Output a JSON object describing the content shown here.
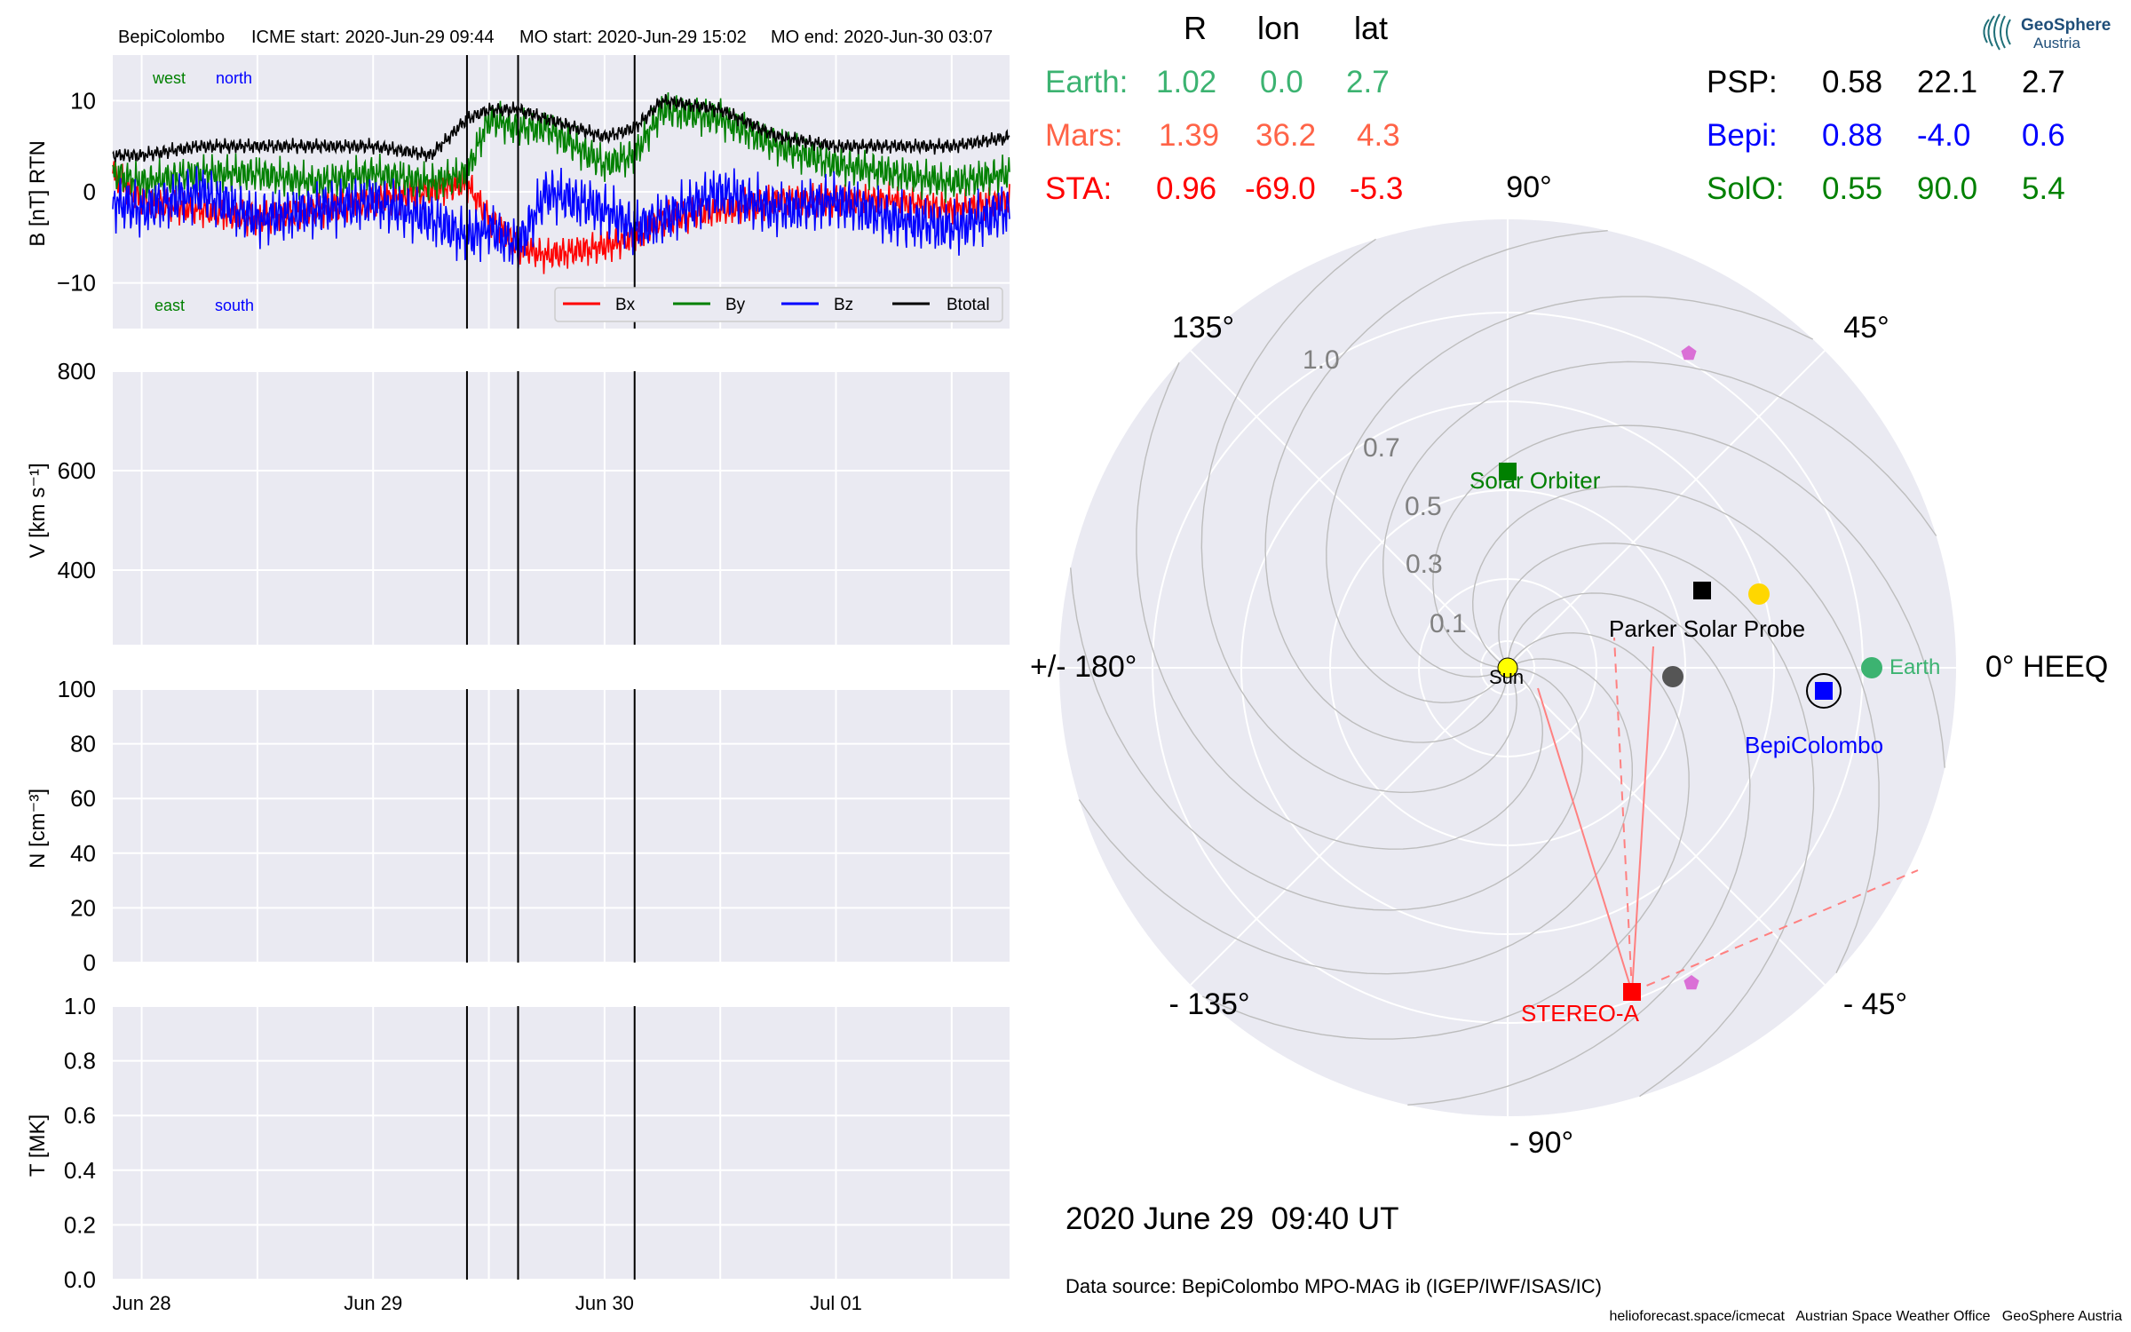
{
  "header": {
    "spacecraft": "BepiColombo",
    "icme_start": "ICME start: 2020-Jun-29 09:44",
    "mo_start": "MO start: 2020-Jun-29 15:02",
    "mo_end": "MO end: 2020-Jun-30 03:07"
  },
  "labels": {
    "west": "west",
    "north": "north",
    "east": "east",
    "south": "south"
  },
  "legend": [
    "Bx",
    "By",
    "Bz",
    "Btotal"
  ],
  "colors": {
    "bx": "#ff0000",
    "by": "#008000",
    "bz": "#0000ff",
    "btotal": "#000000",
    "panel_bg": "#eaeaf2",
    "earth": "#3cb371",
    "mars": "#ff6347",
    "sta": "#ff0000",
    "bepi": "#0000ff",
    "solo": "#008000",
    "psp": "#000000"
  },
  "date_ticks": [
    "Jun 28",
    "Jun 29",
    "Jun 30",
    "Jul 01"
  ],
  "chart_data": [
    {
      "type": "line",
      "ylabel": "B [nT] RTN",
      "ylim": [
        -15,
        15
      ],
      "yticks": [
        "10",
        "0",
        "−10"
      ],
      "xlim": [
        "2020-06-27T21:00",
        "2020-07-01T18:00"
      ],
      "event_lines": [
        "2020-06-29T09:44",
        "2020-06-29T15:02",
        "2020-06-30T03:07"
      ],
      "legend_position": "bottom-right",
      "x": [
        "2020-06-27T21:00",
        "2020-06-28T00:00",
        "2020-06-28T06:00",
        "2020-06-28T12:00",
        "2020-06-28T18:00",
        "2020-06-29T00:00",
        "2020-06-29T06:00",
        "2020-06-29T09:44",
        "2020-06-29T12:00",
        "2020-06-29T15:02",
        "2020-06-29T18:00",
        "2020-06-30T00:00",
        "2020-06-30T03:07",
        "2020-06-30T06:00",
        "2020-06-30T12:00",
        "2020-06-30T18:00",
        "2020-07-01T00:00",
        "2020-07-01T06:00",
        "2020-07-01T12:00",
        "2020-07-01T18:00"
      ],
      "series": [
        {
          "name": "Bx",
          "values": [
            2,
            -1,
            -2,
            -3,
            -2,
            -1,
            0,
            1,
            -3,
            -6,
            -7,
            -6,
            -5,
            -3,
            -2,
            -1,
            -1,
            -1,
            -2,
            -1
          ]
        },
        {
          "name": "By",
          "values": [
            2,
            1,
            2,
            2,
            1,
            2,
            1,
            2,
            8,
            7,
            7,
            3,
            4,
            9,
            8,
            5,
            3,
            2,
            1,
            2
          ]
        },
        {
          "name": "Bz",
          "values": [
            -1,
            -2,
            0,
            -3,
            -2,
            -1,
            -3,
            -5,
            -4,
            -6,
            0,
            -2,
            -4,
            -3,
            0,
            -2,
            -1,
            -3,
            -4,
            -2
          ]
        },
        {
          "name": "Btotal",
          "values": [
            4,
            4,
            5,
            5,
            5,
            5,
            4,
            8,
            9,
            9,
            8,
            6,
            7,
            10,
            9,
            6,
            5,
            5,
            5,
            6
          ]
        }
      ]
    },
    {
      "type": "line",
      "ylabel": "V [km s⁻¹]",
      "ylim": [
        250,
        800
      ],
      "yticks": [
        "800",
        "600",
        "400"
      ],
      "series": []
    },
    {
      "type": "line",
      "ylabel": "N [cm⁻³]",
      "ylim": [
        0,
        100
      ],
      "yticks": [
        "100",
        "80",
        "60",
        "40",
        "20",
        "0"
      ],
      "series": []
    },
    {
      "type": "line",
      "ylabel": "T [MK]",
      "ylim": [
        0,
        1
      ],
      "yticks": [
        "1.0",
        "0.8",
        "0.6",
        "0.4",
        "0.2",
        "0.0"
      ],
      "series": []
    },
    {
      "type": "scatter",
      "projection": "polar",
      "angle_labels": [
        "90°",
        "45°",
        "0° HEEQ",
        "- 45°",
        "- 90°",
        "- 135°",
        "+/- 180°",
        "135°"
      ],
      "radial_labels": [
        "0.1",
        "0.3",
        "0.5",
        "0.7",
        "1.0"
      ],
      "objects": [
        {
          "name": "Sun",
          "r": 0.0,
          "lon": 0.0
        },
        {
          "name": "Parker Solar Probe",
          "r": 0.58,
          "lon": 22.1
        },
        {
          "name": "Solar Orbiter",
          "r": 0.55,
          "lon": 90.0
        },
        {
          "name": "Earth",
          "r": 1.02,
          "lon": 0.0
        },
        {
          "name": "BepiColombo",
          "r": 0.88,
          "lon": -4.0
        },
        {
          "name": "STEREO-A",
          "r": 0.96,
          "lon": -69.0
        },
        {
          "name": "Mars",
          "r": 1.39,
          "lon": 36.2
        }
      ]
    }
  ],
  "table": {
    "headers": [
      "R",
      "lon",
      "lat"
    ],
    "left": [
      {
        "name": "Earth:",
        "r": "1.02",
        "lon": "0.0",
        "lat": "2.7"
      },
      {
        "name": "Mars:",
        "r": "1.39",
        "lon": "36.2",
        "lat": "4.3"
      },
      {
        "name": "STA:",
        "r": "0.96",
        "lon": "-69.0",
        "lat": "-5.3"
      }
    ],
    "right": [
      {
        "name": "PSP:",
        "r": "0.58",
        "lon": "22.1",
        "lat": "2.7"
      },
      {
        "name": "Bepi:",
        "r": "0.88",
        "lon": "-4.0",
        "lat": "0.6"
      },
      {
        "name": "SolO:",
        "r": "0.55",
        "lon": "90.0",
        "lat": "5.4"
      }
    ]
  },
  "polar_labels": {
    "sun": "Sun",
    "psp": "Parker Solar Probe",
    "solo": "Solar Orbiter",
    "earth": "Earth",
    "bepi": "BepiColombo",
    "sta": "STEREO-A"
  },
  "footer": {
    "timestamp": "2020 June 29  09:40 UT",
    "source": "Data source: BepiColombo MPO-MAG ib (IGEP/IWF/ISAS/IC)",
    "credits": "helioforecast.space/icmecat   Austrian Space Weather Office   GeoSphere Austria"
  },
  "logo": {
    "line1": "GeoSphere",
    "line2": "Austria"
  }
}
